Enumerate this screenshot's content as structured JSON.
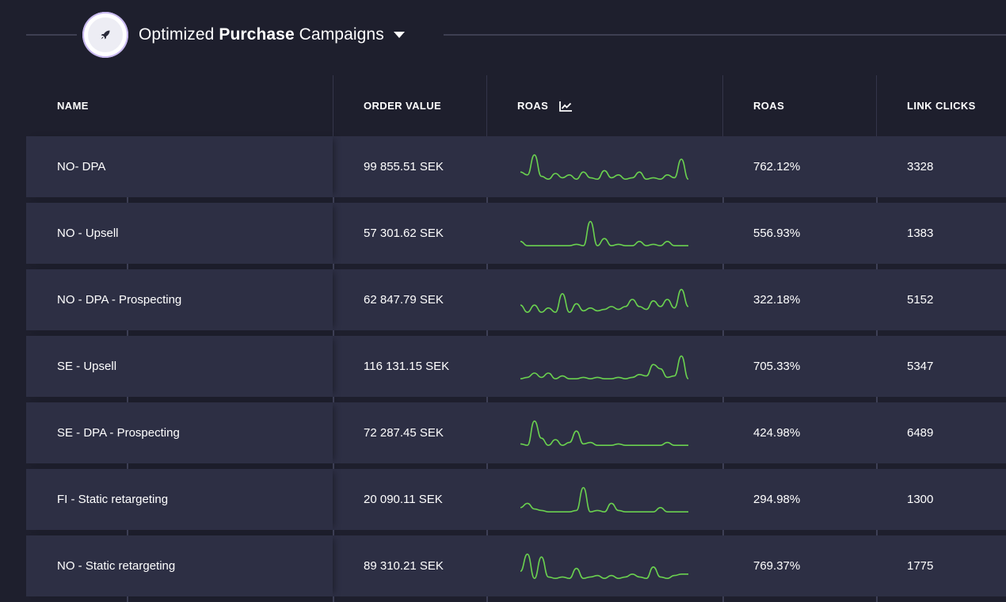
{
  "header": {
    "title_light": "Optimized ",
    "title_bold": "Purchase",
    "title_rest": " Campaigns",
    "badge_icon": "rocket-icon",
    "dropdown_icon": "caret-down-icon"
  },
  "table": {
    "columns": [
      {
        "key": "name",
        "label": "NAME"
      },
      {
        "key": "order_value",
        "label": "ORDER VALUE"
      },
      {
        "key": "roas_trend",
        "label": "ROAS",
        "icon": "trend-chart-icon"
      },
      {
        "key": "roas",
        "label": "ROAS"
      },
      {
        "key": "link_clicks",
        "label": "LINK CLICKS"
      }
    ],
    "rows": [
      {
        "name": "NO- DPA",
        "order_value": "99 855.51 SEK",
        "roas": "762.12%",
        "link_clicks": "3328",
        "trend": [
          0.3,
          0.2,
          0.9,
          0.15,
          0.05,
          0.25,
          0.1,
          0.2,
          0.05,
          0.3,
          0.1,
          0.05,
          0.35,
          0.1,
          0.2,
          0.05,
          0.1,
          0.3,
          0.05,
          0.1,
          0.05,
          0.2,
          0.1,
          0.75,
          0.05
        ]
      },
      {
        "name": "NO - Upsell",
        "order_value": "57 301.62 SEK",
        "roas": "556.93%",
        "link_clicks": "1383",
        "trend": [
          0.2,
          0.05,
          0.05,
          0.05,
          0.05,
          0.05,
          0.05,
          0.05,
          0.1,
          0.05,
          0.9,
          0.05,
          0.3,
          0.05,
          0.1,
          0.05,
          0.05,
          0.2,
          0.05,
          0.1,
          0.05,
          0.2,
          0.05,
          0.05,
          0.05
        ]
      },
      {
        "name": "NO - DPA - Prospecting",
        "order_value": "62 847.79 SEK",
        "roas": "322.18%",
        "link_clicks": "5152",
        "trend": [
          0.3,
          0.05,
          0.3,
          0.05,
          0.2,
          0.05,
          0.7,
          0.05,
          0.35,
          0.1,
          0.2,
          0.1,
          0.15,
          0.25,
          0.15,
          0.25,
          0.5,
          0.25,
          0.15,
          0.45,
          0.25,
          0.5,
          0.2,
          0.85,
          0.25
        ]
      },
      {
        "name": "SE - Upsell",
        "order_value": "116 131.15 SEK",
        "roas": "705.33%",
        "link_clicks": "5347",
        "trend": [
          0.05,
          0.1,
          0.25,
          0.1,
          0.25,
          0.05,
          0.15,
          0.05,
          0.05,
          0.1,
          0.05,
          0.1,
          0.05,
          0.05,
          0.1,
          0.05,
          0.1,
          0.2,
          0.15,
          0.55,
          0.4,
          0.1,
          0.15,
          0.85,
          0.05
        ]
      },
      {
        "name": "SE - DPA - Prospecting",
        "order_value": "72 287.45 SEK",
        "roas": "424.98%",
        "link_clicks": "6489",
        "trend": [
          0.1,
          0.05,
          0.9,
          0.3,
          0.05,
          0.25,
          0.05,
          0.15,
          0.55,
          0.1,
          0.15,
          0.05,
          0.05,
          0.05,
          0.1,
          0.05,
          0.05,
          0.05,
          0.05,
          0.05,
          0.05,
          0.15,
          0.05,
          0.05,
          0.05
        ]
      },
      {
        "name": "FI - Static retargeting",
        "order_value": "20 090.11 SEK",
        "roas": "294.98%",
        "link_clicks": "1300",
        "trend": [
          0.2,
          0.35,
          0.15,
          0.1,
          0.05,
          0.05,
          0.05,
          0.05,
          0.1,
          0.9,
          0.05,
          0.1,
          0.05,
          0.35,
          0.1,
          0.05,
          0.05,
          0.05,
          0.05,
          0.05,
          0.2,
          0.05,
          0.05,
          0.05,
          0.05
        ]
      },
      {
        "name": "NO - Static retargeting",
        "order_value": "89 310.21 SEK",
        "roas": "769.37%",
        "link_clicks": "1775",
        "trend": [
          0.3,
          0.9,
          0.05,
          0.8,
          0.1,
          0.05,
          0.1,
          0.05,
          0.4,
          0.05,
          0.1,
          0.15,
          0.05,
          0.15,
          0.05,
          0.1,
          0.2,
          0.1,
          0.05,
          0.45,
          0.1,
          0.05,
          0.15,
          0.2,
          0.2
        ]
      }
    ]
  },
  "colors": {
    "background": "#1e1f2d",
    "row_background": "#2d2f44",
    "sparkline": "#6ad14f",
    "text": "#ffffff"
  }
}
